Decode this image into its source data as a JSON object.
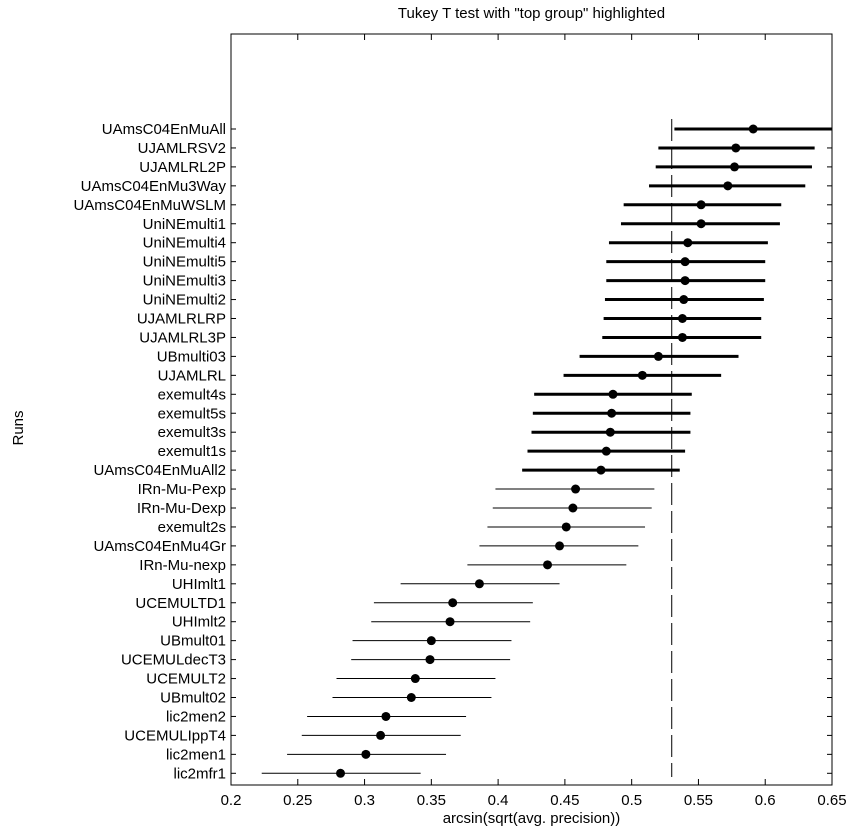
{
  "chart_data": {
    "type": "scatter",
    "title": "Tukey T test with \"top group\" highlighted",
    "xlabel": "arcsin(sqrt(avg. precision))",
    "ylabel": "Runs",
    "xlim": [
      0.2,
      0.65
    ],
    "xticks": [
      "0.2",
      "0.25",
      "0.3",
      "0.35",
      "0.4",
      "0.45",
      "0.5",
      "0.55",
      "0.6",
      "0.65"
    ],
    "reference_line_x": 0.53,
    "grid": false,
    "runs": [
      {
        "label": "UAmsC04EnMuAll",
        "mean": 0.591,
        "low": 0.532,
        "high": 0.65,
        "top_group": true
      },
      {
        "label": "UJAMLRSV2",
        "mean": 0.578,
        "low": 0.52,
        "high": 0.637,
        "top_group": true
      },
      {
        "label": "UJAMLRL2P",
        "mean": 0.577,
        "low": 0.518,
        "high": 0.635,
        "top_group": true
      },
      {
        "label": "UAmsC04EnMu3Way",
        "mean": 0.572,
        "low": 0.513,
        "high": 0.63,
        "top_group": true
      },
      {
        "label": "UAmsC04EnMuWSLM",
        "mean": 0.552,
        "low": 0.494,
        "high": 0.612,
        "top_group": true
      },
      {
        "label": "UniNEmulti1",
        "mean": 0.552,
        "low": 0.492,
        "high": 0.611,
        "top_group": true
      },
      {
        "label": "UniNEmulti4",
        "mean": 0.542,
        "low": 0.483,
        "high": 0.602,
        "top_group": true
      },
      {
        "label": "UniNEmulti5",
        "mean": 0.54,
        "low": 0.481,
        "high": 0.6,
        "top_group": true
      },
      {
        "label": "UniNEmulti3",
        "mean": 0.54,
        "low": 0.481,
        "high": 0.6,
        "top_group": true
      },
      {
        "label": "UniNEmulti2",
        "mean": 0.539,
        "low": 0.48,
        "high": 0.599,
        "top_group": true
      },
      {
        "label": "UJAMLRLRP",
        "mean": 0.538,
        "low": 0.479,
        "high": 0.597,
        "top_group": true
      },
      {
        "label": "UJAMLRL3P",
        "mean": 0.538,
        "low": 0.478,
        "high": 0.597,
        "top_group": true
      },
      {
        "label": "UBmulti03",
        "mean": 0.52,
        "low": 0.461,
        "high": 0.58,
        "top_group": true
      },
      {
        "label": "UJAMLRL",
        "mean": 0.508,
        "low": 0.449,
        "high": 0.567,
        "top_group": true
      },
      {
        "label": "exemult4s",
        "mean": 0.486,
        "low": 0.427,
        "high": 0.545,
        "top_group": true
      },
      {
        "label": "exemult5s",
        "mean": 0.485,
        "low": 0.426,
        "high": 0.544,
        "top_group": true
      },
      {
        "label": "exemult3s",
        "mean": 0.484,
        "low": 0.425,
        "high": 0.544,
        "top_group": true
      },
      {
        "label": "exemult1s",
        "mean": 0.481,
        "low": 0.422,
        "high": 0.54,
        "top_group": true
      },
      {
        "label": "UAmsC04EnMuAll2",
        "mean": 0.477,
        "low": 0.418,
        "high": 0.536,
        "top_group": true
      },
      {
        "label": "IRn-Mu-Pexp",
        "mean": 0.458,
        "low": 0.398,
        "high": 0.517,
        "top_group": false
      },
      {
        "label": "IRn-Mu-Dexp",
        "mean": 0.456,
        "low": 0.396,
        "high": 0.515,
        "top_group": false
      },
      {
        "label": "exemult2s",
        "mean": 0.451,
        "low": 0.392,
        "high": 0.51,
        "top_group": false
      },
      {
        "label": "UAmsC04EnMu4Gr",
        "mean": 0.446,
        "low": 0.386,
        "high": 0.505,
        "top_group": false
      },
      {
        "label": "IRn-Mu-nexp",
        "mean": 0.437,
        "low": 0.377,
        "high": 0.496,
        "top_group": false
      },
      {
        "label": "UHImlt1",
        "mean": 0.386,
        "low": 0.327,
        "high": 0.446,
        "top_group": false
      },
      {
        "label": "UCEMULTD1",
        "mean": 0.366,
        "low": 0.307,
        "high": 0.426,
        "top_group": false
      },
      {
        "label": "UHImlt2",
        "mean": 0.364,
        "low": 0.305,
        "high": 0.424,
        "top_group": false
      },
      {
        "label": "UBmult01",
        "mean": 0.35,
        "low": 0.291,
        "high": 0.41,
        "top_group": false
      },
      {
        "label": "UCEMULdecT3",
        "mean": 0.349,
        "low": 0.29,
        "high": 0.409,
        "top_group": false
      },
      {
        "label": "UCEMULT2",
        "mean": 0.338,
        "low": 0.279,
        "high": 0.398,
        "top_group": false
      },
      {
        "label": "UBmult02",
        "mean": 0.335,
        "low": 0.276,
        "high": 0.395,
        "top_group": false
      },
      {
        "label": "lic2men2",
        "mean": 0.316,
        "low": 0.257,
        "high": 0.376,
        "top_group": false
      },
      {
        "label": "UCEMULIppT4",
        "mean": 0.312,
        "low": 0.253,
        "high": 0.372,
        "top_group": false
      },
      {
        "label": "lic2men1",
        "mean": 0.301,
        "low": 0.242,
        "high": 0.361,
        "top_group": false
      },
      {
        "label": "lic2mfr1",
        "mean": 0.282,
        "low": 0.223,
        "high": 0.342,
        "top_group": false
      }
    ]
  }
}
